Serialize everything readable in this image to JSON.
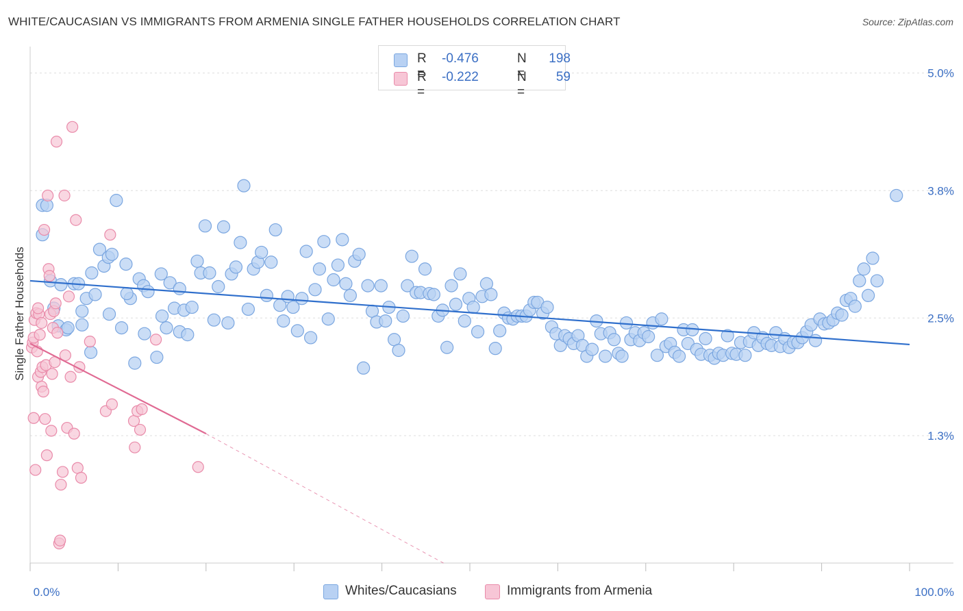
{
  "title": "WHITE/CAUCASIAN VS IMMIGRANTS FROM ARMENIA SINGLE FATHER HOUSEHOLDS CORRELATION CHART",
  "source": "Source: ZipAtlas.com",
  "legend": {
    "rows": [
      {
        "r_label": "R =",
        "r_value": "-0.476",
        "n_label": "N =",
        "n_value": "198"
      },
      {
        "r_label": "R =",
        "r_value": "-0.222",
        "n_label": "N =",
        "n_value": "59"
      }
    ]
  },
  "bottom_legend": {
    "series1": "Whites/Caucasians",
    "series2": "Immigrants from Armenia"
  },
  "colors": {
    "blue_fill": "#b8d1f3",
    "blue_stroke": "#7aa6e0",
    "blue_line": "#2f6fcc",
    "pink_fill": "#f7c6d6",
    "pink_stroke": "#e98aa9",
    "pink_line": "#e06a93",
    "tick_label": "#3b6fc4",
    "grid": "#dddddd"
  },
  "chart_data": {
    "type": "scatter",
    "title": "WHITE/CAUCASIAN VS IMMIGRANTS FROM ARMENIA SINGLE FATHER HOUSEHOLDS CORRELATION CHART",
    "xlabel": "",
    "ylabel": "Single Father Households",
    "xlim": [
      0,
      100
    ],
    "ylim": [
      0,
      5.2
    ],
    "x_tick_labels": [
      "0.0%",
      "100.0%"
    ],
    "y_ticks": [
      1.3,
      2.5,
      3.8,
      5.0
    ],
    "y_tick_labels": [
      "1.3%",
      "2.5%",
      "3.8%",
      "5.0%"
    ],
    "grid": true,
    "legend_position": "top-center",
    "series": [
      {
        "name": "Whites/Caucasians",
        "trend": {
          "x0": 0,
          "y0": 2.88,
          "x1": 100,
          "y1": 2.23
        },
        "points": [
          [
            1.4,
            3.35
          ],
          [
            1.4,
            3.65
          ],
          [
            2.3,
            2.88
          ],
          [
            2.7,
            2.6
          ],
          [
            3.2,
            2.42
          ],
          [
            3.5,
            2.84
          ],
          [
            4.1,
            2.38
          ],
          [
            4.3,
            2.4
          ],
          [
            5.0,
            2.85
          ],
          [
            5.5,
            2.85
          ],
          [
            5.9,
            2.43
          ],
          [
            6.4,
            2.7
          ],
          [
            6.9,
            2.15
          ],
          [
            7.4,
            2.74
          ],
          [
            7.9,
            3.2
          ],
          [
            8.4,
            3.03
          ],
          [
            8.9,
            3.12
          ],
          [
            9.3,
            3.15
          ],
          [
            9.8,
            3.7
          ],
          [
            10.4,
            2.4
          ],
          [
            10.9,
            3.05
          ],
          [
            11.4,
            2.7
          ],
          [
            11.9,
            2.04
          ],
          [
            12.4,
            2.9
          ],
          [
            12.9,
            2.83
          ],
          [
            13.4,
            2.77
          ],
          [
            14.4,
            2.1
          ],
          [
            14.9,
            2.95
          ],
          [
            15.5,
            2.4
          ],
          [
            15.9,
            2.86
          ],
          [
            16.4,
            2.6
          ],
          [
            17.0,
            2.36
          ],
          [
            17.5,
            2.58
          ],
          [
            17.9,
            2.33
          ],
          [
            18.4,
            2.61
          ],
          [
            19.0,
            3.08
          ],
          [
            19.4,
            2.96
          ],
          [
            19.9,
            3.44
          ],
          [
            20.4,
            2.96
          ],
          [
            20.9,
            2.48
          ],
          [
            21.4,
            2.82
          ],
          [
            22.0,
            3.43
          ],
          [
            22.5,
            2.45
          ],
          [
            22.9,
            2.95
          ],
          [
            23.4,
            3.02
          ],
          [
            23.9,
            3.27
          ],
          [
            24.3,
            3.85
          ],
          [
            24.8,
            2.59
          ],
          [
            25.4,
            3.0
          ],
          [
            25.9,
            3.07
          ],
          [
            26.3,
            3.17
          ],
          [
            26.9,
            2.73
          ],
          [
            27.4,
            3.07
          ],
          [
            27.9,
            3.4
          ],
          [
            28.4,
            2.63
          ],
          [
            28.8,
            2.47
          ],
          [
            29.3,
            2.72
          ],
          [
            29.9,
            2.61
          ],
          [
            30.4,
            2.37
          ],
          [
            30.9,
            2.7
          ],
          [
            31.4,
            3.18
          ],
          [
            31.9,
            2.3
          ],
          [
            32.4,
            2.79
          ],
          [
            32.9,
            3.0
          ],
          [
            33.4,
            3.28
          ],
          [
            33.9,
            2.49
          ],
          [
            34.5,
            2.89
          ],
          [
            35.0,
            3.04
          ],
          [
            35.5,
            3.3
          ],
          [
            35.9,
            2.85
          ],
          [
            36.4,
            2.73
          ],
          [
            36.9,
            3.08
          ],
          [
            37.4,
            3.15
          ],
          [
            37.9,
            1.99
          ],
          [
            38.4,
            2.83
          ],
          [
            38.9,
            2.57
          ],
          [
            39.4,
            2.46
          ],
          [
            39.9,
            2.83
          ],
          [
            40.4,
            2.47
          ],
          [
            40.8,
            2.61
          ],
          [
            41.4,
            2.28
          ],
          [
            41.9,
            2.17
          ],
          [
            42.4,
            2.52
          ],
          [
            42.9,
            2.83
          ],
          [
            43.4,
            3.13
          ],
          [
            43.9,
            2.76
          ],
          [
            44.4,
            2.76
          ],
          [
            44.9,
            3.0
          ],
          [
            45.4,
            2.75
          ],
          [
            45.9,
            2.74
          ],
          [
            46.4,
            2.52
          ],
          [
            46.9,
            2.58
          ],
          [
            47.4,
            2.2
          ],
          [
            47.9,
            2.83
          ],
          [
            48.4,
            2.64
          ],
          [
            48.9,
            2.95
          ],
          [
            49.4,
            2.47
          ],
          [
            49.9,
            2.7
          ],
          [
            50.4,
            2.61
          ],
          [
            50.9,
            2.36
          ],
          [
            51.4,
            2.72
          ],
          [
            51.9,
            2.85
          ],
          [
            52.4,
            2.74
          ],
          [
            52.9,
            2.19
          ],
          [
            53.4,
            2.37
          ],
          [
            53.9,
            2.55
          ],
          [
            54.4,
            2.5
          ],
          [
            54.9,
            2.49
          ],
          [
            55.4,
            2.52
          ],
          [
            55.9,
            2.52
          ],
          [
            56.4,
            2.52
          ],
          [
            56.8,
            2.58
          ],
          [
            57.3,
            2.66
          ],
          [
            57.7,
            2.66
          ],
          [
            58.3,
            2.55
          ],
          [
            58.8,
            2.61
          ],
          [
            59.3,
            2.41
          ],
          [
            59.8,
            2.34
          ],
          [
            60.3,
            2.22
          ],
          [
            60.8,
            2.32
          ],
          [
            61.3,
            2.29
          ],
          [
            61.8,
            2.24
          ],
          [
            62.3,
            2.32
          ],
          [
            62.8,
            2.22
          ],
          [
            63.3,
            2.11
          ],
          [
            63.9,
            2.18
          ],
          [
            64.4,
            2.47
          ],
          [
            64.9,
            2.34
          ],
          [
            65.4,
            2.11
          ],
          [
            65.9,
            2.35
          ],
          [
            66.4,
            2.28
          ],
          [
            66.9,
            2.14
          ],
          [
            67.3,
            2.11
          ],
          [
            67.8,
            2.45
          ],
          [
            68.3,
            2.28
          ],
          [
            68.8,
            2.35
          ],
          [
            69.3,
            2.27
          ],
          [
            69.8,
            2.35
          ],
          [
            70.3,
            2.31
          ],
          [
            70.8,
            2.45
          ],
          [
            71.3,
            2.12
          ],
          [
            71.8,
            2.49
          ],
          [
            72.3,
            2.21
          ],
          [
            72.8,
            2.24
          ],
          [
            73.3,
            2.15
          ],
          [
            73.8,
            2.11
          ],
          [
            74.3,
            2.38
          ],
          [
            74.8,
            2.24
          ],
          [
            75.3,
            2.38
          ],
          [
            75.8,
            2.18
          ],
          [
            76.3,
            2.13
          ],
          [
            76.8,
            2.29
          ],
          [
            77.3,
            2.12
          ],
          [
            77.8,
            2.09
          ],
          [
            78.3,
            2.14
          ],
          [
            78.8,
            2.12
          ],
          [
            79.3,
            2.32
          ],
          [
            79.8,
            2.14
          ],
          [
            80.3,
            2.13
          ],
          [
            80.8,
            2.25
          ],
          [
            81.3,
            2.12
          ],
          [
            81.8,
            2.26
          ],
          [
            82.3,
            2.35
          ],
          [
            82.8,
            2.22
          ],
          [
            83.3,
            2.3
          ],
          [
            83.8,
            2.24
          ],
          [
            84.3,
            2.22
          ],
          [
            84.8,
            2.35
          ],
          [
            85.3,
            2.21
          ],
          [
            85.8,
            2.29
          ],
          [
            86.3,
            2.2
          ],
          [
            86.8,
            2.25
          ],
          [
            87.3,
            2.25
          ],
          [
            87.8,
            2.3
          ],
          [
            88.3,
            2.36
          ],
          [
            88.8,
            2.43
          ],
          [
            89.3,
            2.27
          ],
          [
            89.8,
            2.49
          ],
          [
            90.3,
            2.44
          ],
          [
            90.8,
            2.45
          ],
          [
            91.3,
            2.48
          ],
          [
            91.8,
            2.55
          ],
          [
            92.3,
            2.53
          ],
          [
            92.8,
            2.68
          ],
          [
            93.3,
            2.7
          ],
          [
            93.8,
            2.62
          ],
          [
            94.3,
            2.88
          ],
          [
            94.8,
            3.0
          ],
          [
            95.3,
            2.73
          ],
          [
            95.8,
            3.11
          ],
          [
            96.3,
            2.88
          ],
          [
            98.5,
            3.75
          ],
          [
            1.9,
            3.65
          ],
          [
            5.9,
            2.57
          ],
          [
            7.0,
            2.96
          ],
          [
            9.0,
            2.54
          ],
          [
            11.0,
            2.75
          ],
          [
            13.0,
            2.34
          ],
          [
            15.0,
            2.52
          ],
          [
            17.0,
            2.8
          ]
        ]
      },
      {
        "name": "Immigrants from Armenia",
        "trend": {
          "x0": 0,
          "y0": 2.24,
          "x1": 20,
          "y1": 1.32,
          "dash_to_x": 47,
          "dash_to_y": 0.0
        },
        "points": [
          [
            0.2,
            2.2
          ],
          [
            0.3,
            2.25
          ],
          [
            0.4,
            2.3
          ],
          [
            0.5,
            2.48
          ],
          [
            0.7,
            2.55
          ],
          [
            0.8,
            2.16
          ],
          [
            0.9,
            1.9
          ],
          [
            1.0,
            2.54
          ],
          [
            1.1,
            2.33
          ],
          [
            1.2,
            1.95
          ],
          [
            1.3,
            1.8
          ],
          [
            1.4,
            2.0
          ],
          [
            1.5,
            1.75
          ],
          [
            1.6,
            3.4
          ],
          [
            1.7,
            1.47
          ],
          [
            1.8,
            2.02
          ],
          [
            1.9,
            1.1
          ],
          [
            2.0,
            3.75
          ],
          [
            2.1,
            3.0
          ],
          [
            2.2,
            2.93
          ],
          [
            2.3,
            2.54
          ],
          [
            2.4,
            1.35
          ],
          [
            2.5,
            1.93
          ],
          [
            2.6,
            2.4
          ],
          [
            2.7,
            2.57
          ],
          [
            2.8,
            2.05
          ],
          [
            2.9,
            2.65
          ],
          [
            3.0,
            4.3
          ],
          [
            3.1,
            2.35
          ],
          [
            3.3,
            0.2
          ],
          [
            3.4,
            0.23
          ],
          [
            3.5,
            0.8
          ],
          [
            3.7,
            0.93
          ],
          [
            3.9,
            3.75
          ],
          [
            4.0,
            2.12
          ],
          [
            4.2,
            1.38
          ],
          [
            4.4,
            2.72
          ],
          [
            4.6,
            1.9
          ],
          [
            4.8,
            4.45
          ],
          [
            5.0,
            1.32
          ],
          [
            5.2,
            3.5
          ],
          [
            5.4,
            0.97
          ],
          [
            5.6,
            2.0
          ],
          [
            5.8,
            0.87
          ],
          [
            6.8,
            2.26
          ],
          [
            8.6,
            1.55
          ],
          [
            9.1,
            3.35
          ],
          [
            9.3,
            1.62
          ],
          [
            11.8,
            1.45
          ],
          [
            11.9,
            1.18
          ],
          [
            12.2,
            1.55
          ],
          [
            12.5,
            1.36
          ],
          [
            12.7,
            1.57
          ],
          [
            14.3,
            2.28
          ],
          [
            19.1,
            0.98
          ],
          [
            0.6,
            0.95
          ],
          [
            0.9,
            2.6
          ],
          [
            1.3,
            2.45
          ],
          [
            0.4,
            1.48
          ]
        ]
      }
    ]
  }
}
